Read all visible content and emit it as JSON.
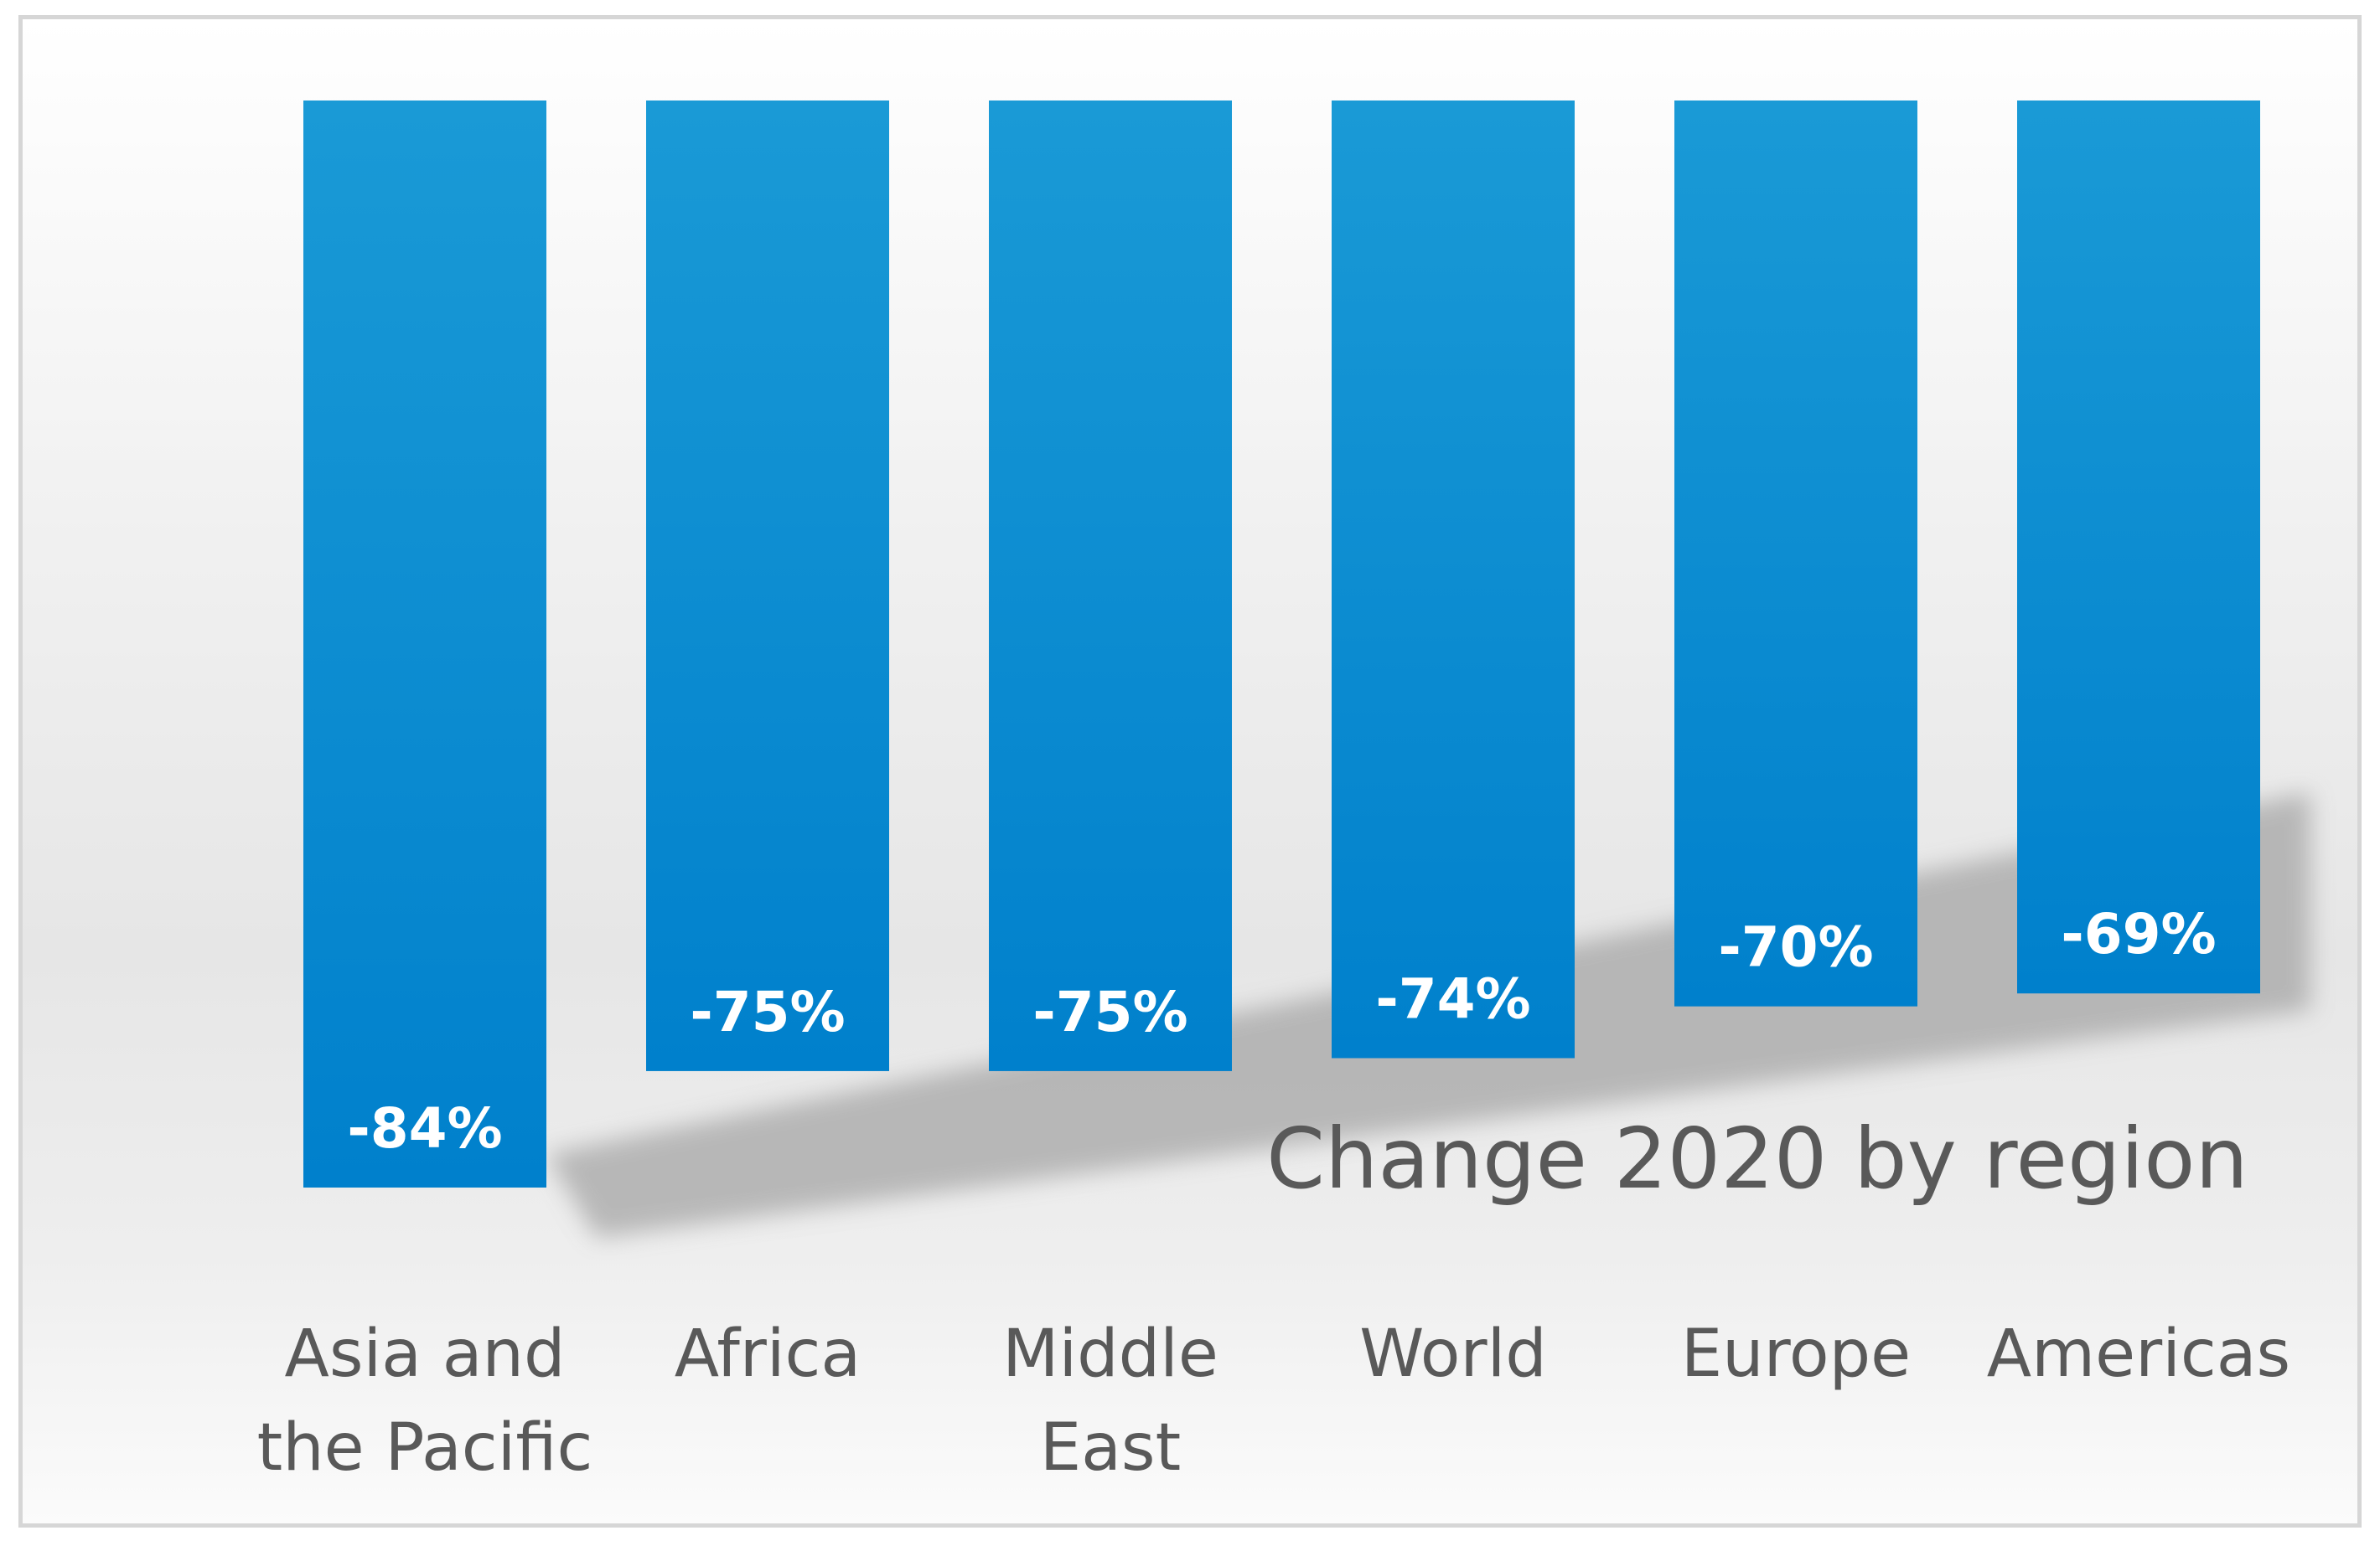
{
  "chart_data": {
    "type": "bar",
    "title": "Change 2020 by region",
    "xlabel": "",
    "ylabel": "",
    "categories": [
      "Asia and the Pacific",
      "Africa",
      "Middle East",
      "World",
      "Europe",
      "Americas"
    ],
    "category_lines": [
      [
        "Asia and",
        "the Pacific"
      ],
      [
        "Africa"
      ],
      [
        "Middle",
        "East"
      ],
      [
        "World"
      ],
      [
        "Europe"
      ],
      [
        "Americas"
      ]
    ],
    "values": [
      -84,
      -75,
      -75,
      -74,
      -70,
      -69
    ],
    "data_labels": [
      "-84%",
      "-75%",
      "-75%",
      "-74%",
      "-70%",
      "-69%"
    ],
    "ylim": [
      -84,
      0
    ],
    "grid": false,
    "legend": "none",
    "colors": {
      "bar_top": "#1a9ad6",
      "bar_bottom": "#0080cc",
      "text": "#595959",
      "label": "#ffffff",
      "shadow": "#a6a6a6",
      "frame_border": "#d6d6d6"
    }
  }
}
